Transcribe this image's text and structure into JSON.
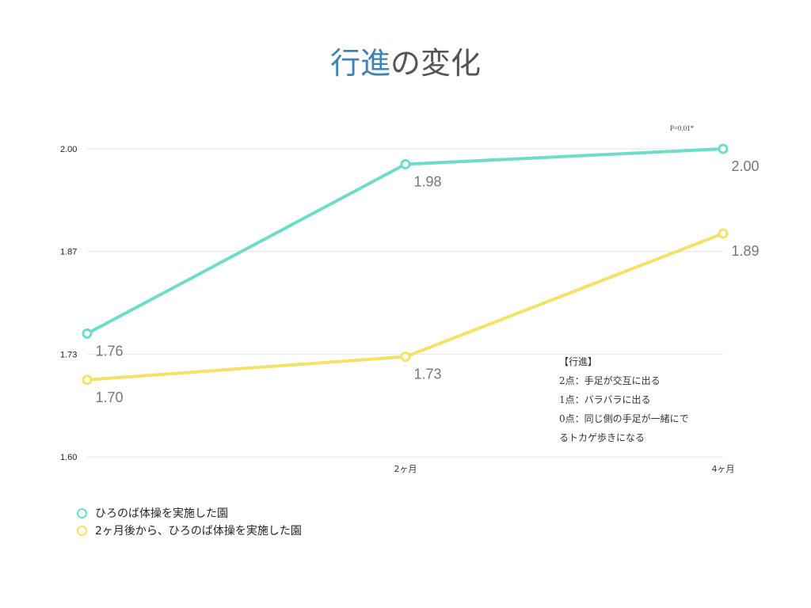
{
  "title_parts": [
    "行進",
    "の変化"
  ],
  "colors": {
    "series1": "#6fdcc9",
    "series2": "#f2e266",
    "title_accent": "#3f82b5"
  },
  "chart_data": {
    "type": "line",
    "title": "行進の変化",
    "categories": [
      "",
      "2ヶ月",
      "4ヶ月"
    ],
    "yticks": [
      "1.60",
      "1.73",
      "1.87",
      "2.00"
    ],
    "ylim": [
      1.6,
      2.0
    ],
    "grid": true,
    "legend_position": "bottom-left",
    "series": [
      {
        "name": "ひろのば体操を実施した園",
        "values": [
          1.76,
          1.98,
          2.0
        ],
        "labels": [
          "1.76",
          "1.98",
          "2.00"
        ]
      },
      {
        "name": "2ヶ月後から、ひろのば体操を実施した園",
        "values": [
          1.7,
          1.73,
          1.89
        ],
        "labels": [
          "1.70",
          "1.73",
          "1.89"
        ]
      }
    ],
    "annotations": [
      "P=0.01*"
    ]
  },
  "note": {
    "lines": [
      "【行進】",
      "2点：手足が交互に出る",
      "1点：バラバラに出る",
      "0点：同じ側の手足が一緒にで",
      "るトカゲ歩きになる"
    ]
  }
}
